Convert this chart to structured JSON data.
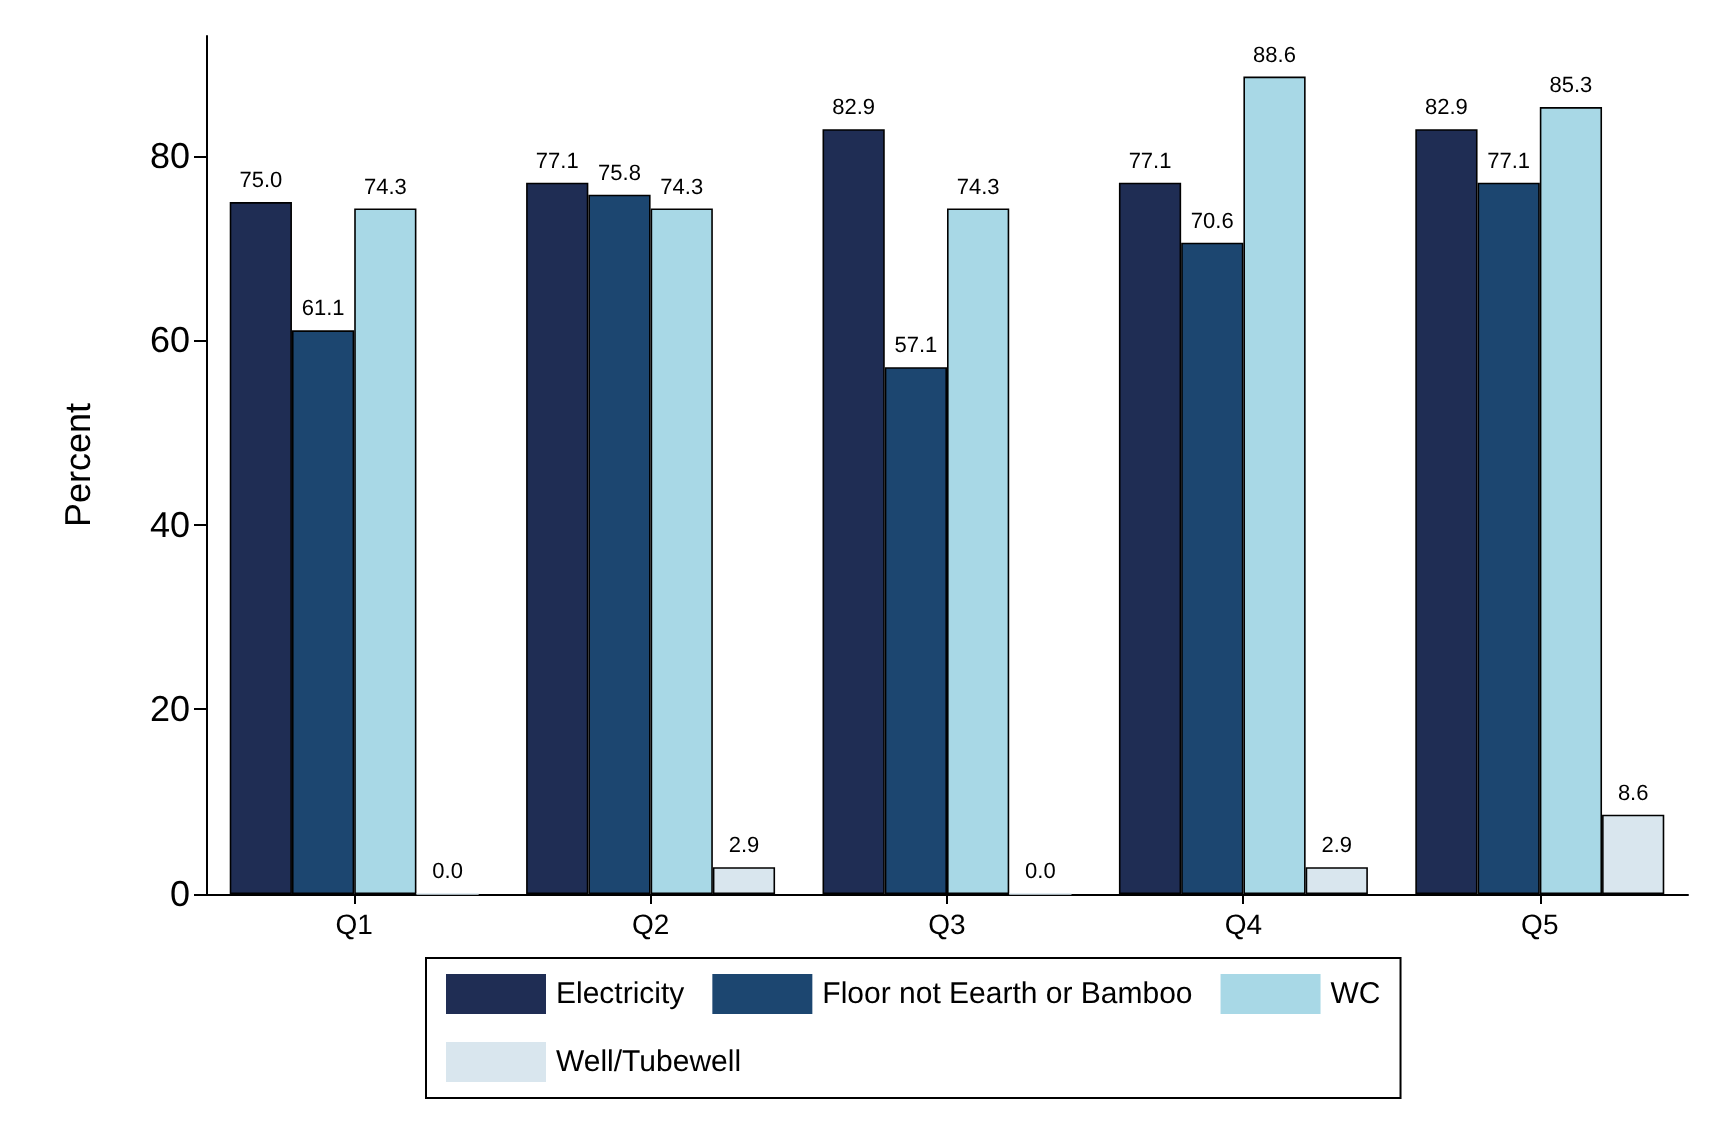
{
  "chart_data": {
    "type": "bar",
    "ylabel": "Percent",
    "categories": [
      "Q1",
      "Q2",
      "Q3",
      "Q4",
      "Q5"
    ],
    "series": [
      {
        "name": "Electricity",
        "color": "#1f2d54",
        "values": [
          75.0,
          77.1,
          82.9,
          77.1,
          82.9
        ],
        "value_labels": [
          "75.0",
          "77.1",
          "82.9",
          "77.1",
          "82.9"
        ]
      },
      {
        "name": "Floor not Eearth or Bamboo",
        "color": "#1c4670",
        "values": [
          61.1,
          75.8,
          57.1,
          70.6,
          77.1
        ],
        "value_labels": [
          "61.1",
          "75.8",
          "57.1",
          "70.6",
          "77.1"
        ]
      },
      {
        "name": "WC",
        "color": "#a8d8e6",
        "values": [
          74.3,
          74.3,
          74.3,
          88.6,
          85.3
        ],
        "value_labels": [
          "74.3",
          "74.3",
          "74.3",
          "88.6",
          "85.3"
        ]
      },
      {
        "name": "Well/Tubewell",
        "color": "#d9e6ee",
        "values": [
          0.0,
          2.9,
          0.0,
          2.9,
          8.6
        ],
        "value_labels": [
          "0.0",
          "2.9",
          "0.0",
          "2.9",
          "8.6"
        ]
      }
    ],
    "ylim": [
      0,
      93
    ],
    "yticks": [
      0,
      20,
      40,
      60,
      80
    ],
    "grid": false,
    "legend": "bottom"
  }
}
